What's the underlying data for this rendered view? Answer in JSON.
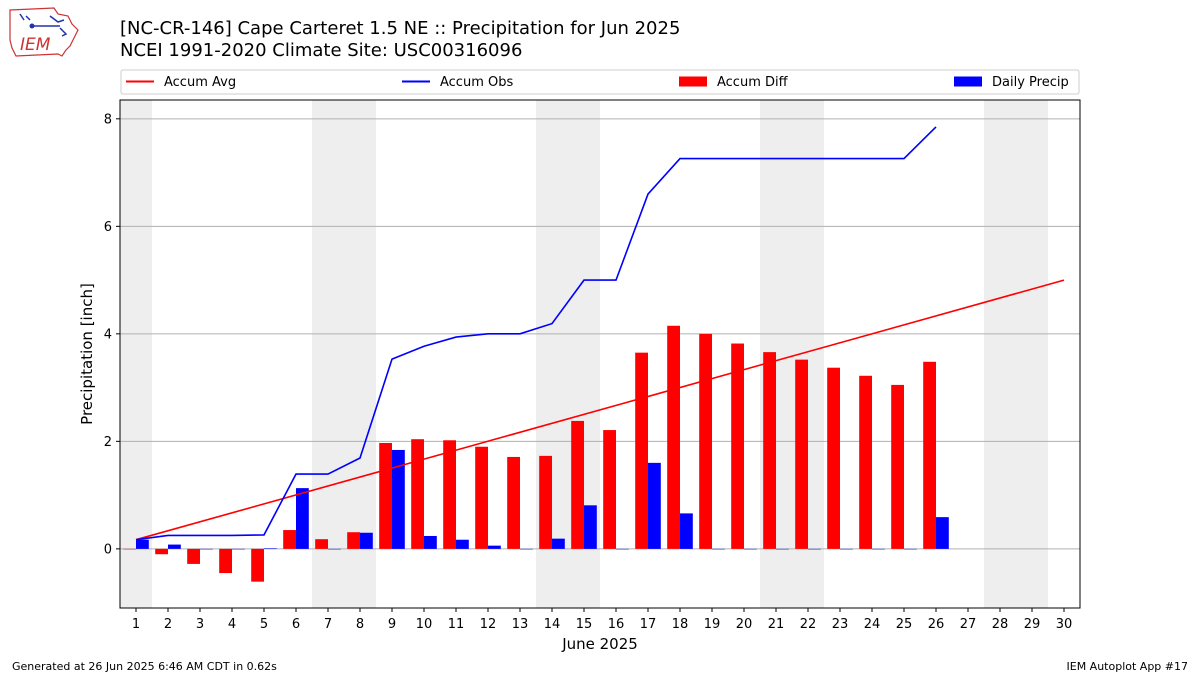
{
  "header": {
    "title": "[NC-CR-146] Cape Carteret 1.5 NE :: Precipitation for Jun 2025",
    "subtitle": "NCEI 1991-2020 Climate Site: USC00316096"
  },
  "logo": {
    "text": "IEM",
    "icon": "iem-iowa-logo-icon"
  },
  "footer": {
    "generated": "Generated at 26 Jun 2025 6:46 AM CDT in 0.62s",
    "app": "IEM Autoplot App #17"
  },
  "colors": {
    "avg": "#ff0000",
    "obs": "#0000ff",
    "weekend": "#eeeeee",
    "grid": "#b0b0b0"
  },
  "chart_data": {
    "type": "bar",
    "xlabel": "June 2025",
    "ylabel": "Precipitation [inch]",
    "ylim": [
      -1.1,
      8.35
    ],
    "yticks": [
      0,
      2,
      4,
      6,
      8
    ],
    "grid": "horizontal",
    "legend_position": "top",
    "days": [
      1,
      2,
      3,
      4,
      5,
      6,
      7,
      8,
      9,
      10,
      11,
      12,
      13,
      14,
      15,
      16,
      17,
      18,
      19,
      20,
      21,
      22,
      23,
      24,
      25,
      26,
      27,
      28,
      29,
      30
    ],
    "weekend_days": [
      1,
      7,
      8,
      14,
      15,
      21,
      22,
      28,
      29
    ],
    "series": [
      {
        "name": "Accum Avg",
        "kind": "line",
        "color": "#ff0000",
        "x": [
          1,
          30
        ],
        "values": [
          0.17,
          5.0
        ]
      },
      {
        "name": "Accum Obs",
        "kind": "line",
        "color": "#0000ff",
        "x": [
          1,
          2,
          3,
          4,
          5,
          6,
          7,
          8,
          9,
          10,
          11,
          12,
          13,
          14,
          15,
          16,
          17,
          18,
          19,
          20,
          21,
          22,
          23,
          24,
          25,
          26
        ],
        "values": [
          0.17,
          0.25,
          0.25,
          0.25,
          0.26,
          1.39,
          1.39,
          1.69,
          3.53,
          3.77,
          3.94,
          4.0,
          4.0,
          4.19,
          5.0,
          5.0,
          6.6,
          7.26,
          7.26,
          7.26,
          7.26,
          7.26,
          7.26,
          7.26,
          7.26,
          7.85
        ]
      },
      {
        "name": "Accum Diff",
        "kind": "bar",
        "color": "#ff0000",
        "x": [
          1,
          2,
          3,
          4,
          5,
          6,
          7,
          8,
          9,
          10,
          11,
          12,
          13,
          14,
          15,
          16,
          17,
          18,
          19,
          20,
          21,
          22,
          23,
          24,
          25,
          26
        ],
        "values": [
          0.0,
          -0.1,
          -0.28,
          -0.45,
          -0.61,
          0.35,
          0.18,
          0.31,
          1.97,
          2.04,
          2.02,
          1.9,
          1.71,
          1.73,
          2.38,
          2.21,
          3.65,
          4.15,
          4.0,
          3.82,
          3.66,
          3.52,
          3.37,
          3.22,
          3.05,
          3.48
        ]
      },
      {
        "name": "Daily Precip",
        "kind": "bar",
        "color": "#0000ff",
        "x": [
          1,
          2,
          3,
          4,
          5,
          6,
          7,
          8,
          9,
          10,
          11,
          12,
          13,
          14,
          15,
          16,
          17,
          18,
          19,
          20,
          21,
          22,
          23,
          24,
          25,
          26
        ],
        "values": [
          0.17,
          0.08,
          0.0,
          0.0,
          0.01,
          1.13,
          0.0,
          0.3,
          1.84,
          0.24,
          0.17,
          0.06,
          0.0,
          0.19,
          0.81,
          0.0,
          1.6,
          0.66,
          0.0,
          0.0,
          0.0,
          0.0,
          0.0,
          0.0,
          0.0,
          0.59
        ]
      }
    ]
  }
}
